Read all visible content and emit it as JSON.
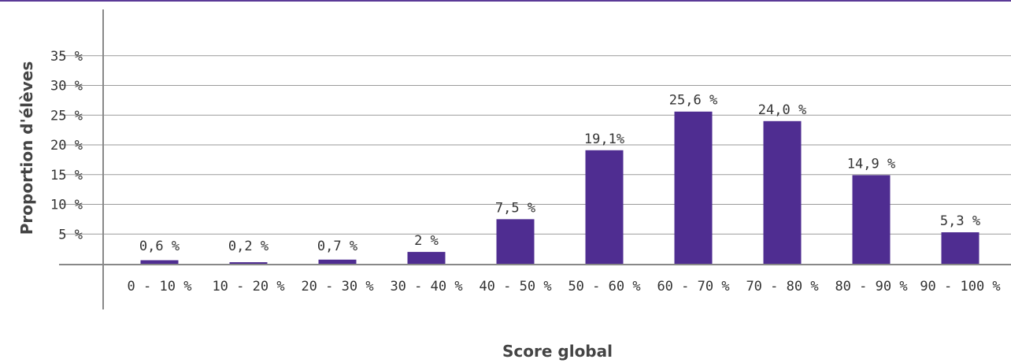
{
  "chart_data": {
    "type": "bar",
    "xlabel": "Score global",
    "ylabel": "Proportion d'élèves",
    "categories": [
      "0 - 10 %",
      "10 - 20 %",
      "20 - 30 %",
      "30 - 40 %",
      "40 - 50 %",
      "50 - 60 %",
      "60 - 70 %",
      "70 - 80 %",
      "80 - 90 %",
      "90 - 100 %"
    ],
    "values": [
      0.6,
      0.2,
      0.7,
      2,
      7.5,
      19.1,
      25.6,
      24.0,
      14.9,
      5.3
    ],
    "data_labels": [
      "0,6 %",
      "0,2 %",
      "0,7 %",
      "2 %",
      "7,5 %",
      "19,1%",
      "25,6 %",
      "24,0 %",
      "14,9 %",
      "5,3 %"
    ],
    "yticks": [
      5,
      10,
      15,
      20,
      25,
      30,
      35
    ],
    "ytick_labels": [
      "5 %",
      "10 %",
      "15 %",
      "20 %",
      "25 %",
      "30 %",
      "35 %"
    ],
    "ylim": [
      0,
      35
    ],
    "grid": true,
    "legend": false,
    "colors": {
      "bar": "#4f2d91",
      "top_rule": "#5b3a97",
      "grid": "#9a9a9a"
    }
  }
}
